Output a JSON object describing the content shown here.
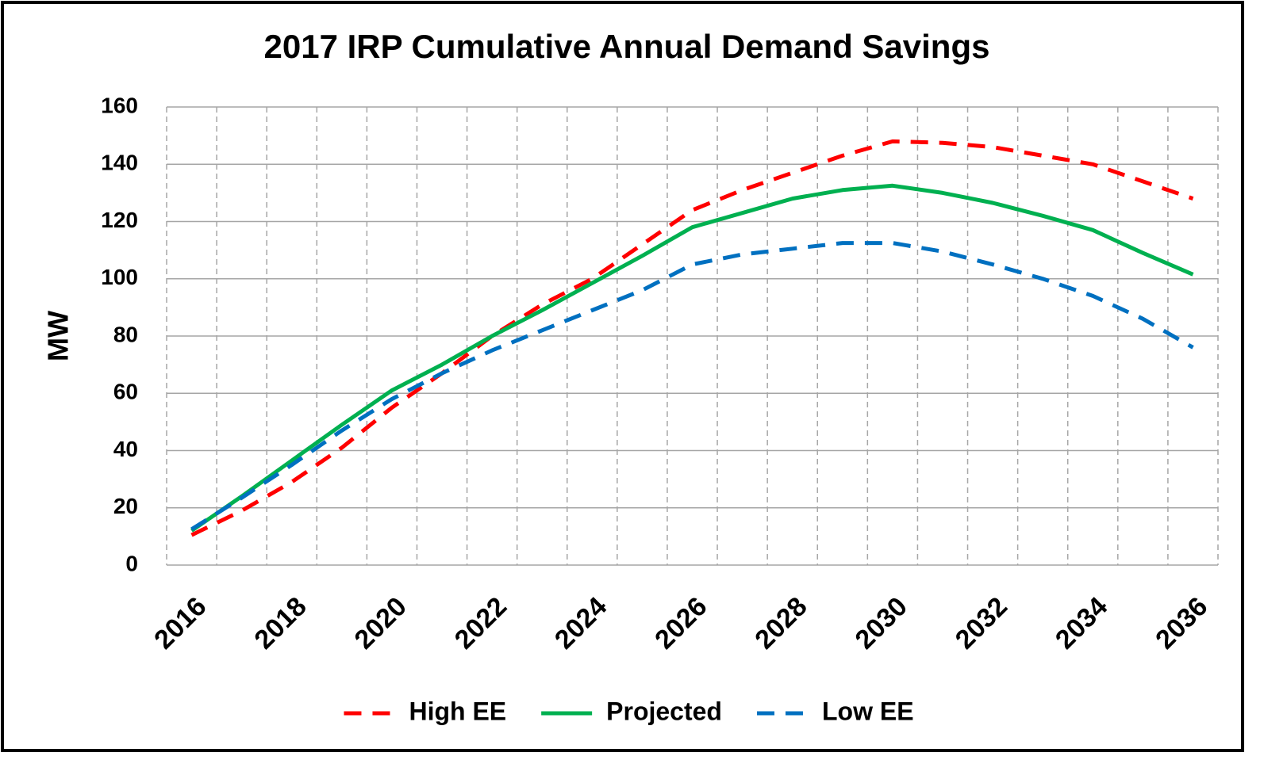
{
  "chart_data": {
    "type": "line",
    "title": "2017 IRP Cumulative Annual Demand Savings",
    "y_label": "MW",
    "categories": [
      "2016",
      null,
      "2018",
      null,
      "2020",
      null,
      "2022",
      null,
      "2024",
      null,
      "2026",
      null,
      "2028",
      null,
      "2030",
      null,
      "2032",
      null,
      "2034",
      null,
      "2036"
    ],
    "ylim": [
      0,
      160
    ],
    "yticks": [
      0,
      20,
      40,
      60,
      80,
      100,
      120,
      140,
      160
    ],
    "grid": true,
    "legend": "bottom",
    "series": [
      {
        "name": "High EE",
        "color": "#ff0000",
        "dashed": true,
        "values": [
          10.5,
          19,
          29,
          41,
          55,
          67,
          80,
          91,
          100,
          112,
          124,
          131,
          137,
          143,
          148,
          147.5,
          146,
          143,
          140,
          134,
          128
        ]
      },
      {
        "name": "Projected",
        "color": "#00b050",
        "dashed": false,
        "values": [
          12,
          24,
          36.5,
          49,
          61,
          70,
          80,
          89,
          98.5,
          108,
          118,
          123,
          128,
          131,
          132.5,
          130,
          126.5,
          122,
          117,
          109,
          101.5
        ]
      },
      {
        "name": "Low EE",
        "color": "#0070c0",
        "dashed": true,
        "values": [
          12.5,
          23.5,
          35,
          47,
          58,
          67,
          75,
          82,
          89,
          96,
          105,
          108.5,
          110.5,
          112.5,
          112.5,
          109.5,
          105,
          100,
          94,
          86,
          76
        ]
      }
    ]
  }
}
